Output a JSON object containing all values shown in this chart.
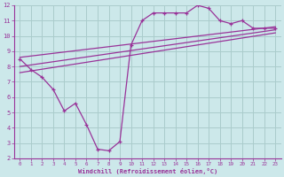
{
  "bg_color": "#cce8ea",
  "grid_color": "#aacccc",
  "line_color": "#993399",
  "xlabel": "Windchill (Refroidissement éolien,°C)",
  "xlim": [
    -0.5,
    23.5
  ],
  "ylim": [
    2,
    12
  ],
  "yticks": [
    2,
    3,
    4,
    5,
    6,
    7,
    8,
    9,
    10,
    11,
    12
  ],
  "xticks": [
    0,
    1,
    2,
    3,
    4,
    5,
    6,
    7,
    8,
    9,
    10,
    11,
    12,
    13,
    14,
    15,
    16,
    17,
    18,
    19,
    20,
    21,
    22,
    23
  ],
  "curve_x": [
    0,
    1,
    2,
    3,
    4,
    5,
    6,
    7,
    8,
    9,
    10,
    11,
    12,
    13,
    14,
    15,
    16,
    17,
    18,
    19,
    20,
    21,
    22,
    23
  ],
  "curve_y": [
    8.5,
    7.8,
    7.3,
    6.5,
    5.1,
    5.6,
    4.2,
    2.6,
    2.5,
    3.1,
    9.4,
    11.0,
    11.5,
    11.5,
    11.5,
    11.5,
    12.0,
    11.8,
    11.0,
    10.8,
    11.0,
    10.5,
    10.5,
    10.5
  ],
  "line1_x": [
    0,
    23
  ],
  "line1_y": [
    8.6,
    10.6
  ],
  "line2_x": [
    0,
    23
  ],
  "line2_y": [
    8.0,
    10.4
  ],
  "line3_x": [
    0,
    23
  ],
  "line3_y": [
    7.6,
    10.2
  ]
}
